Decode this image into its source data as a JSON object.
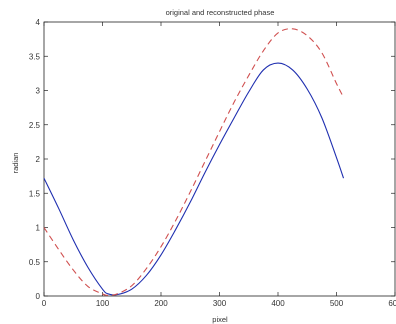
{
  "chart_data": {
    "type": "line",
    "title": "original and reconstructed phase",
    "xlabel": "pixel",
    "ylabel": "radian",
    "xlim": [
      0,
      600
    ],
    "ylim": [
      0,
      4
    ],
    "xticks": [
      "0",
      "100",
      "200",
      "300",
      "400",
      "500",
      "600"
    ],
    "yticks": [
      "0",
      "0.5",
      "1",
      "1.5",
      "2",
      "2.5",
      "3",
      "3.5",
      "4"
    ],
    "grid": false,
    "legend": "none",
    "series": [
      {
        "color": "#1f2fb0",
        "style": "solid",
        "x": [
          0,
          25,
          50,
          75,
          100,
          110,
          125,
          150,
          175,
          200,
          225,
          250,
          275,
          300,
          325,
          350,
          375,
          400,
          425,
          450,
          475,
          500,
          512
        ],
        "y": [
          1.72,
          1.28,
          0.82,
          0.42,
          0.1,
          0.03,
          0.02,
          0.1,
          0.3,
          0.6,
          0.97,
          1.37,
          1.8,
          2.21,
          2.6,
          2.98,
          3.3,
          3.4,
          3.3,
          3.02,
          2.6,
          2.02,
          1.72
        ]
      },
      {
        "color": "#d05050",
        "style": "dashed",
        "x": [
          0,
          25,
          50,
          75,
          100,
          110,
          125,
          150,
          175,
          200,
          225,
          250,
          275,
          300,
          325,
          350,
          375,
          400,
          425,
          450,
          475,
          500,
          512
        ],
        "y": [
          1.0,
          0.68,
          0.38,
          0.14,
          0.03,
          0.01,
          0.03,
          0.15,
          0.4,
          0.72,
          1.1,
          1.52,
          1.96,
          2.4,
          2.83,
          3.22,
          3.58,
          3.84,
          3.9,
          3.8,
          3.55,
          3.1,
          2.9
        ]
      }
    ]
  }
}
